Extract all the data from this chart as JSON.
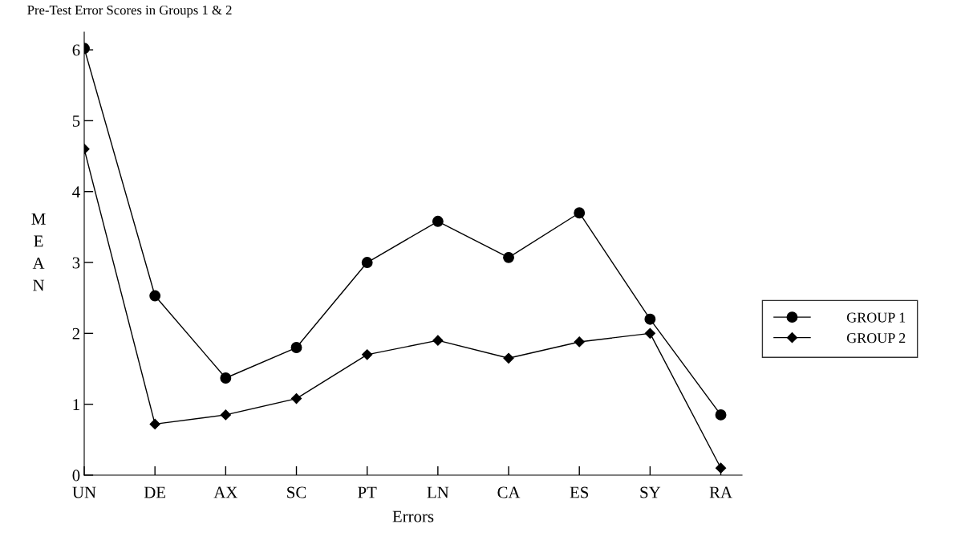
{
  "chart_data": {
    "type": "line",
    "title": "Pre-Test Error Scores in Groups 1 & 2",
    "xlabel": "Errors",
    "ylabel": "MEAN",
    "categories": [
      "UN",
      "DE",
      "AX",
      "SC",
      "PT",
      "LN",
      "CA",
      "ES",
      "SY",
      "RA"
    ],
    "series": [
      {
        "name": "GROUP 1",
        "color": "#000000",
        "marker": "circle",
        "values": [
          6.02,
          2.53,
          1.37,
          1.8,
          3.0,
          3.58,
          3.07,
          3.7,
          2.2,
          0.85
        ]
      },
      {
        "name": "GROUP 2",
        "color": "#000000",
        "marker": "diamond",
        "values": [
          4.6,
          0.72,
          0.85,
          1.08,
          1.7,
          1.9,
          1.65,
          1.88,
          2.0,
          0.1
        ]
      }
    ],
    "ylim": [
      0,
      6.25
    ],
    "yticks": [
      0,
      1,
      2,
      3,
      4,
      5,
      6
    ],
    "grid": false,
    "legend": "right"
  }
}
